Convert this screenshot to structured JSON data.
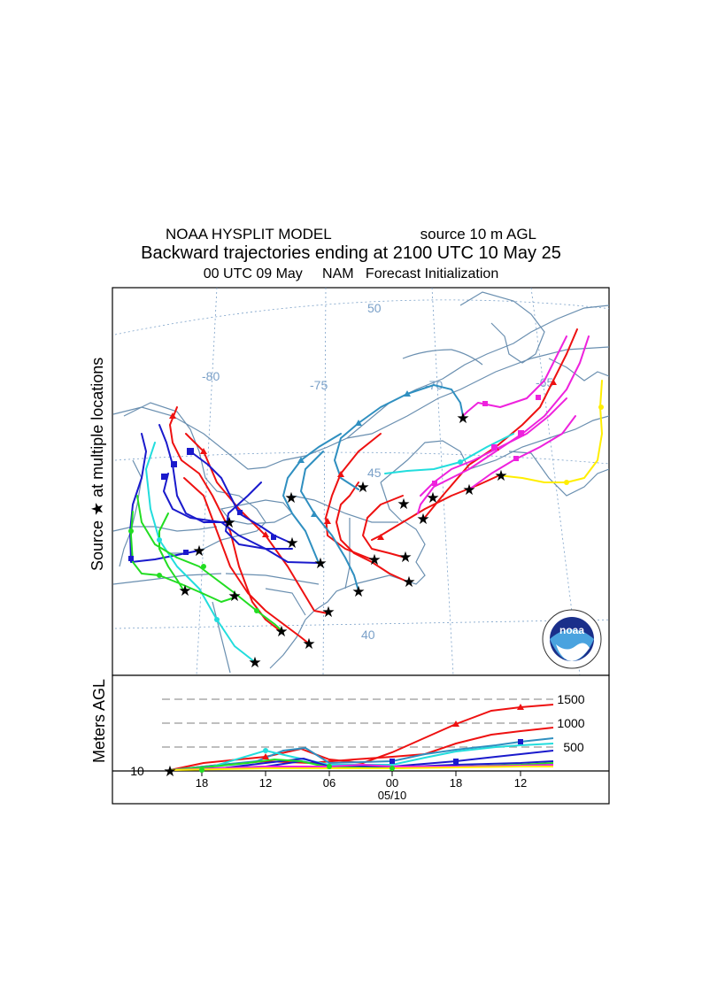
{
  "header": {
    "model": "NOAA HYSPLIT MODEL",
    "source": "source 10 m AGL",
    "subtitle": "Backward trajectories ending at 2100 UTC 10 May 25",
    "run_info": "00 UTC 09 May     NAM   Forecast Initialization"
  },
  "map": {
    "ylabel": "Source ★ at multiple locations",
    "lat_labels": [
      "50",
      "45",
      "40"
    ],
    "lon_labels": [
      "-80",
      "-75",
      "-70",
      "-65"
    ],
    "logo_text": "noaa",
    "colors": {
      "coast": "#6a8fb0",
      "grid": "#7aa0c8",
      "red": "#ee1111",
      "blue": "#1a1acc",
      "cyan": "#22dddd",
      "green": "#22dd22",
      "teal": "#2f8fc0",
      "magenta": "#ee22dd",
      "yellow": "#ffee00"
    }
  },
  "altitude_panel": {
    "ylabel": "Meters AGL",
    "y_ticks": [
      "1500",
      "1000",
      "500",
      "10"
    ],
    "x_ticks": [
      "18",
      "12",
      "06",
      "00",
      "18",
      "12"
    ],
    "date_label": "05/10"
  }
}
